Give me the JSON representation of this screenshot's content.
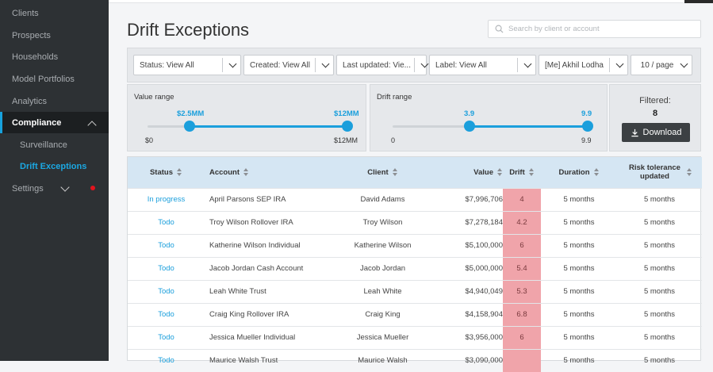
{
  "sidebar": {
    "items": [
      {
        "label": "Clients"
      },
      {
        "label": "Prospects"
      },
      {
        "label": "Households"
      },
      {
        "label": "Model Portfolios"
      },
      {
        "label": "Analytics"
      },
      {
        "label": "Compliance"
      },
      {
        "label": "Surveillance"
      },
      {
        "label": "Drift Exceptions"
      },
      {
        "label": "Settings"
      }
    ],
    "notification_color": "#e3141d",
    "accent_color": "#1ba8e3"
  },
  "header": {
    "title": "Drift Exceptions",
    "search_placeholder": "Search by client or account"
  },
  "filters": {
    "status": "Status: View All",
    "created": "Created: View All",
    "last_updated": "Last updated: Vie...",
    "label": "Label: View All",
    "owner": "[Me] Akhil Lodha",
    "page_size": "10 / page"
  },
  "value_range": {
    "title": "Value range",
    "low_label": "$2.5MM",
    "high_label": "$12MM",
    "min_label": "$0",
    "max_label": "$12MM",
    "low_fraction": 0.21,
    "high_fraction": 1.0
  },
  "drift_range": {
    "title": "Drift range",
    "low_label": "3.9",
    "high_label": "9.9",
    "min_label": "0",
    "max_label": "9.9",
    "low_fraction": 0.394,
    "high_fraction": 1.0
  },
  "summary": {
    "filtered_label": "Filtered:",
    "filtered_count": "8",
    "download_label": "Download"
  },
  "table": {
    "columns": {
      "status": "Status",
      "account": "Account",
      "client": "Client",
      "value": "Value",
      "drift": "Drift",
      "duration": "Duration",
      "risk": "Risk tolerance updated"
    },
    "rows": [
      {
        "status": "In progress",
        "account": "April Parsons SEP IRA",
        "client": "David Adams",
        "value": "$7,996,706",
        "drift": "4",
        "duration": "5 months",
        "risk": "5 months"
      },
      {
        "status": "Todo",
        "account": "Troy Wilson Rollover IRA",
        "client": "Troy Wilson",
        "value": "$7,278,184",
        "drift": "4.2",
        "duration": "5 months",
        "risk": "5 months"
      },
      {
        "status": "Todo",
        "account": "Katherine Wilson Individual",
        "client": "Katherine Wilson",
        "value": "$5,100,000",
        "drift": "6",
        "duration": "5 months",
        "risk": "5 months"
      },
      {
        "status": "Todo",
        "account": "Jacob Jordan Cash Account",
        "client": "Jacob Jordan",
        "value": "$5,000,000",
        "drift": "5.4",
        "duration": "5 months",
        "risk": "5 months"
      },
      {
        "status": "Todo",
        "account": "Leah White Trust",
        "client": "Leah White",
        "value": "$4,940,049",
        "drift": "5.3",
        "duration": "5 months",
        "risk": "5 months"
      },
      {
        "status": "Todo",
        "account": "Craig King Rollover IRA",
        "client": "Craig King",
        "value": "$4,158,904",
        "drift": "6.8",
        "duration": "5 months",
        "risk": "5 months"
      },
      {
        "status": "Todo",
        "account": "Jessica Mueller Individual",
        "client": "Jessica Mueller",
        "value": "$3,956,000",
        "drift": "6",
        "duration": "5 months",
        "risk": "5 months"
      },
      {
        "status": "Todo",
        "account": "Maurice Walsh Trust",
        "client": "Maurice Walsh",
        "value": "$3,090,000",
        "drift": "",
        "duration": "5 months",
        "risk": "5 months"
      }
    ]
  }
}
